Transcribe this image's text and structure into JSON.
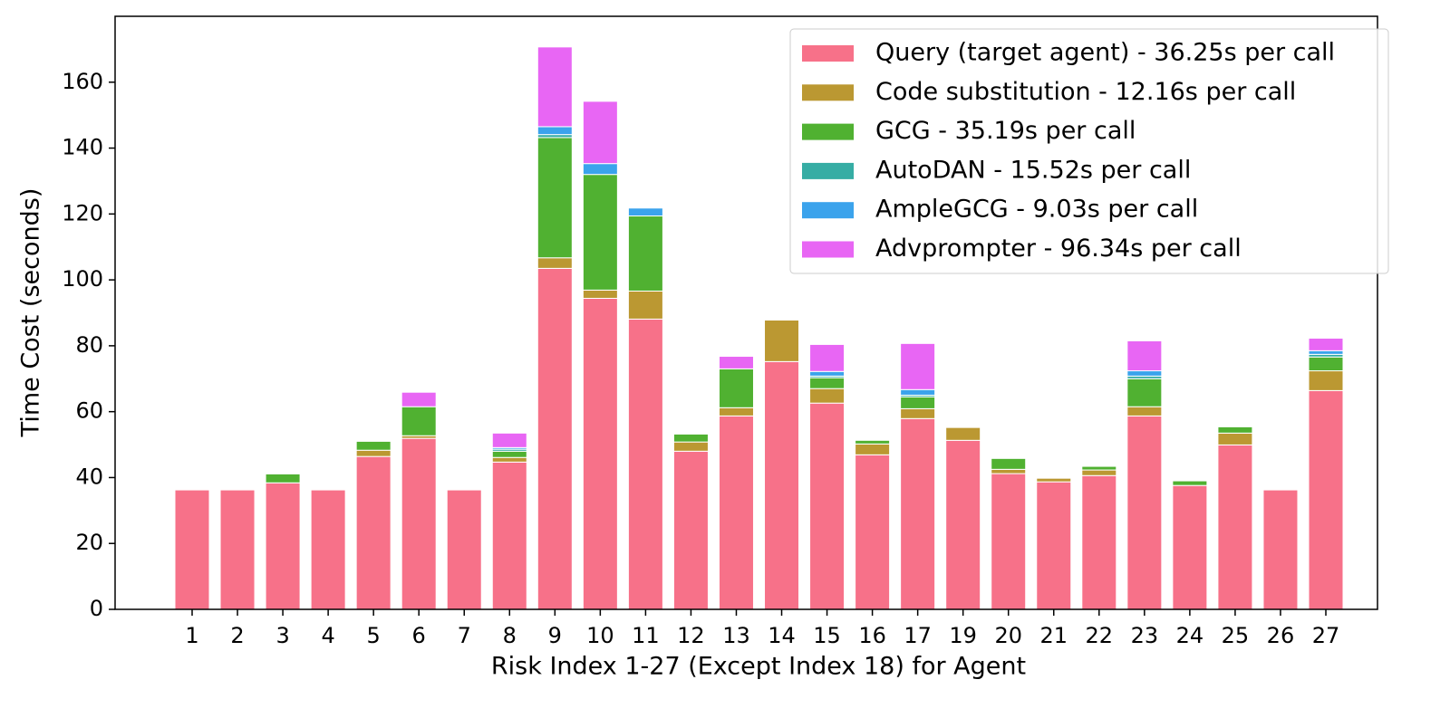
{
  "chart_data": {
    "type": "stacked_bar",
    "x_label": "Risk Index 1-27 (Except Index 18) for Agent",
    "y_label": "Time Cost (seconds)",
    "categories": [
      "1",
      "2",
      "3",
      "4",
      "5",
      "6",
      "7",
      "8",
      "9",
      "10",
      "11",
      "12",
      "13",
      "14",
      "15",
      "16",
      "17",
      "19",
      "20",
      "21",
      "22",
      "23",
      "24",
      "25",
      "26",
      "27"
    ],
    "series": [
      {
        "name": "Query (target agent) - 36.25s per call",
        "color": "#f77189",
        "values": [
          36.25,
          36.25,
          38.4,
          36.25,
          46.4,
          51.9,
          36.25,
          44.7,
          103.5,
          94.4,
          88.1,
          48.0,
          58.7,
          75.2,
          62.6,
          46.9,
          57.9,
          51.3,
          41.2,
          38.7,
          40.6,
          58.7,
          37.6,
          49.9,
          36.25,
          66.4
        ]
      },
      {
        "name": "Code substitution - 12.16s per call",
        "color": "#bb9832",
        "values": [
          0,
          0,
          0,
          0,
          1.9,
          0.8,
          0,
          1.4,
          3.2,
          2.5,
          8.5,
          2.8,
          2.5,
          12.6,
          4.4,
          3.3,
          3.0,
          3.9,
          1.3,
          1.1,
          1.7,
          2.8,
          0,
          3.6,
          0,
          6.0
        ]
      },
      {
        "name": "GCG - 35.19s per call",
        "color": "#50b131",
        "values": [
          0,
          0,
          2.7,
          0,
          2.7,
          8.8,
          0,
          1.9,
          36.5,
          35.1,
          22.8,
          2.4,
          11.8,
          0,
          3.3,
          1.1,
          3.6,
          0,
          3.3,
          0,
          1.1,
          8.5,
          1.4,
          1.9,
          0,
          4.2
        ]
      },
      {
        "name": "AutoDAN - 15.52s per call",
        "color": "#36ada4",
        "values": [
          0,
          0,
          0,
          0,
          0,
          0,
          0,
          0.6,
          0.9,
          0,
          0,
          0,
          0,
          0,
          0.5,
          0,
          0.5,
          0,
          0,
          0,
          0,
          0.8,
          0,
          0,
          0,
          0.8
        ]
      },
      {
        "name": "AmpleGCG - 9.03s per call",
        "color": "#3ba3ec",
        "values": [
          0,
          0,
          0,
          0,
          0,
          0,
          0,
          0.5,
          2.4,
          3.3,
          2.4,
          0,
          0,
          0,
          1.4,
          0,
          1.7,
          0,
          0,
          0,
          0,
          1.6,
          0,
          0,
          0,
          1.1
        ]
      },
      {
        "name": "Advprompter - 96.34s per call",
        "color": "#e866f4",
        "values": [
          0,
          0,
          0,
          0,
          0,
          4.4,
          0,
          4.4,
          24.2,
          18.9,
          0,
          0,
          3.8,
          0,
          8.2,
          0,
          14.0,
          0,
          0,
          0,
          0,
          9.1,
          0,
          0,
          0,
          3.8
        ]
      }
    ],
    "ylim": [
      0,
      180
    ],
    "yticks": [
      0,
      20,
      40,
      60,
      80,
      100,
      120,
      140,
      160
    ],
    "legend": "upper right"
  }
}
